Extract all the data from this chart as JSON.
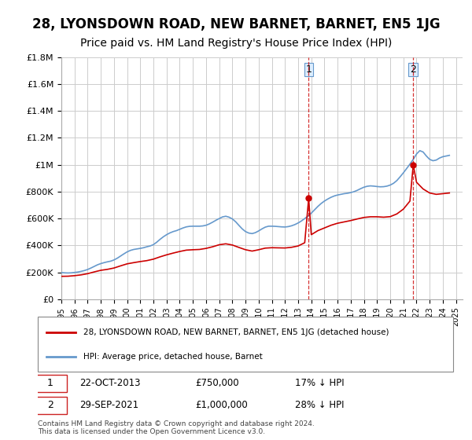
{
  "title": "28, LYONSDOWN ROAD, NEW BARNET, BARNET, EN5 1JG",
  "subtitle": "Price paid vs. HM Land Registry's House Price Index (HPI)",
  "title_fontsize": 12,
  "subtitle_fontsize": 10,
  "background_color": "#ffffff",
  "plot_background_color": "#ffffff",
  "grid_color": "#cccccc",
  "red_line_color": "#cc0000",
  "blue_line_color": "#6699cc",
  "ylim": [
    0,
    1800000
  ],
  "xlim_start": 1995.0,
  "xlim_end": 2025.5,
  "yticks": [
    0,
    200000,
    400000,
    600000,
    800000,
    1000000,
    1200000,
    1400000,
    1600000,
    1800000
  ],
  "ytick_labels": [
    "£0",
    "£200K",
    "£400K",
    "£600K",
    "£800K",
    "£1M",
    "£1.2M",
    "£1.4M",
    "£1.6M",
    "£1.8M"
  ],
  "xticks": [
    1995,
    1996,
    1997,
    1998,
    1999,
    2000,
    2001,
    2002,
    2003,
    2004,
    2005,
    2006,
    2007,
    2008,
    2009,
    2010,
    2011,
    2012,
    2013,
    2014,
    2015,
    2016,
    2017,
    2018,
    2019,
    2020,
    2021,
    2022,
    2023,
    2024,
    2025
  ],
  "sale1_x": 2013.8,
  "sale1_y": 750000,
  "sale1_label": "1",
  "sale1_date": "22-OCT-2013",
  "sale1_price": "£750,000",
  "sale1_hpi": "17% ↓ HPI",
  "sale2_x": 2021.75,
  "sale2_y": 1000000,
  "sale2_label": "2",
  "sale2_date": "29-SEP-2021",
  "sale2_price": "£1,000,000",
  "sale2_hpi": "28% ↓ HPI",
  "legend_line1": "28, LYONSDOWN ROAD, NEW BARNET, BARNET, EN5 1JG (detached house)",
  "legend_line2": "HPI: Average price, detached house, Barnet",
  "footer": "Contains HM Land Registry data © Crown copyright and database right 2024.\nThis data is licensed under the Open Government Licence v3.0.",
  "hpi_years": [
    1995.0,
    1995.25,
    1995.5,
    1995.75,
    1996.0,
    1996.25,
    1996.5,
    1996.75,
    1997.0,
    1997.25,
    1997.5,
    1997.75,
    1998.0,
    1998.25,
    1998.5,
    1998.75,
    1999.0,
    1999.25,
    1999.5,
    1999.75,
    2000.0,
    2000.25,
    2000.5,
    2000.75,
    2001.0,
    2001.25,
    2001.5,
    2001.75,
    2002.0,
    2002.25,
    2002.5,
    2002.75,
    2003.0,
    2003.25,
    2003.5,
    2003.75,
    2004.0,
    2004.25,
    2004.5,
    2004.75,
    2005.0,
    2005.25,
    2005.5,
    2005.75,
    2006.0,
    2006.25,
    2006.5,
    2006.75,
    2007.0,
    2007.25,
    2007.5,
    2007.75,
    2008.0,
    2008.25,
    2008.5,
    2008.75,
    2009.0,
    2009.25,
    2009.5,
    2009.75,
    2010.0,
    2010.25,
    2010.5,
    2010.75,
    2011.0,
    2011.25,
    2011.5,
    2011.75,
    2012.0,
    2012.25,
    2012.5,
    2012.75,
    2013.0,
    2013.25,
    2013.5,
    2013.75,
    2014.0,
    2014.25,
    2014.5,
    2014.75,
    2015.0,
    2015.25,
    2015.5,
    2015.75,
    2016.0,
    2016.25,
    2016.5,
    2016.75,
    2017.0,
    2017.25,
    2017.5,
    2017.75,
    2018.0,
    2018.25,
    2018.5,
    2018.75,
    2019.0,
    2019.25,
    2019.5,
    2019.75,
    2020.0,
    2020.25,
    2020.5,
    2020.75,
    2021.0,
    2021.25,
    2021.5,
    2021.75,
    2022.0,
    2022.25,
    2022.5,
    2022.75,
    2023.0,
    2023.25,
    2023.5,
    2023.75,
    2024.0,
    2024.25,
    2024.5
  ],
  "hpi_values": [
    198000,
    196000,
    195000,
    196000,
    199000,
    202000,
    207000,
    213000,
    221000,
    232000,
    244000,
    256000,
    265000,
    272000,
    278000,
    283000,
    292000,
    305000,
    321000,
    337000,
    352000,
    363000,
    370000,
    374000,
    378000,
    383000,
    390000,
    396000,
    406000,
    424000,
    445000,
    464000,
    480000,
    493000,
    503000,
    510000,
    520000,
    530000,
    538000,
    542000,
    543000,
    543000,
    543000,
    545000,
    550000,
    560000,
    573000,
    587000,
    600000,
    612000,
    617000,
    610000,
    597000,
    576000,
    549000,
    523000,
    503000,
    492000,
    488000,
    495000,
    508000,
    523000,
    536000,
    543000,
    543000,
    542000,
    540000,
    538000,
    537000,
    540000,
    546000,
    555000,
    567000,
    582000,
    600000,
    618000,
    640000,
    665000,
    690000,
    712000,
    730000,
    745000,
    758000,
    768000,
    775000,
    780000,
    785000,
    788000,
    793000,
    800000,
    810000,
    822000,
    833000,
    840000,
    843000,
    841000,
    838000,
    836000,
    837000,
    841000,
    849000,
    862000,
    882000,
    910000,
    940000,
    972000,
    1005000,
    1040000,
    1080000,
    1105000,
    1095000,
    1065000,
    1040000,
    1030000,
    1035000,
    1050000,
    1060000,
    1065000,
    1070000
  ],
  "red_years": [
    1995.0,
    1995.5,
    1996.0,
    1996.5,
    1997.0,
    1997.5,
    1998.0,
    1998.5,
    1999.0,
    1999.5,
    2000.0,
    2000.5,
    2001.0,
    2001.5,
    2002.0,
    2002.5,
    2003.0,
    2003.5,
    2004.0,
    2004.5,
    2005.0,
    2005.5,
    2006.0,
    2006.5,
    2007.0,
    2007.5,
    2008.0,
    2008.5,
    2009.0,
    2009.5,
    2010.0,
    2010.5,
    2011.0,
    2011.5,
    2012.0,
    2012.5,
    2013.0,
    2013.5,
    2013.8,
    2014.0,
    2014.5,
    2015.0,
    2015.5,
    2016.0,
    2016.5,
    2017.0,
    2017.5,
    2018.0,
    2018.5,
    2019.0,
    2019.5,
    2020.0,
    2020.5,
    2021.0,
    2021.5,
    2021.75,
    2022.0,
    2022.5,
    2023.0,
    2023.5,
    2024.0,
    2024.5
  ],
  "red_values": [
    170000,
    171000,
    175000,
    181000,
    190000,
    203000,
    215000,
    222000,
    232000,
    248000,
    263000,
    272000,
    280000,
    287000,
    298000,
    315000,
    330000,
    343000,
    355000,
    365000,
    368000,
    370000,
    378000,
    390000,
    405000,
    412000,
    403000,
    385000,
    368000,
    358000,
    368000,
    380000,
    383000,
    382000,
    381000,
    386000,
    396000,
    420000,
    750000,
    480000,
    510000,
    530000,
    550000,
    565000,
    575000,
    585000,
    597000,
    608000,
    613000,
    613000,
    610000,
    614000,
    634000,
    670000,
    730000,
    1000000,
    870000,
    820000,
    790000,
    780000,
    785000,
    790000
  ]
}
